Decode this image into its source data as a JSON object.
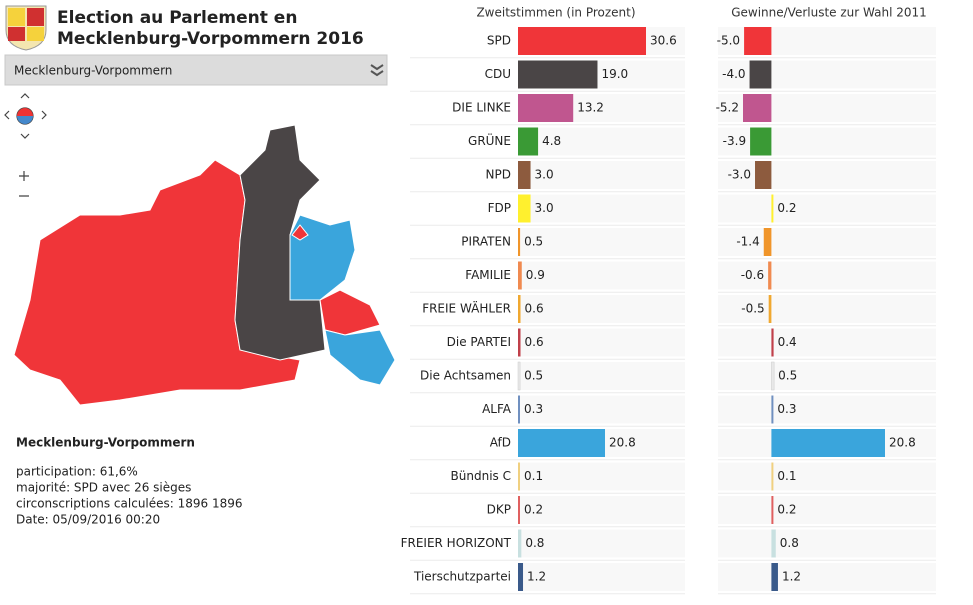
{
  "header": {
    "title_lines": [
      "Election au Parlement en",
      "Mecklenburg-Vorpommern 2016"
    ]
  },
  "selector": {
    "value": "Mecklenburg-Vorpommern"
  },
  "info": {
    "region": "Mecklenburg-Vorpommern",
    "lines": [
      "participation: 61,6%",
      "majorité: SPD avec 26 sièges",
      "circonscriptions calculées: 1896 1896",
      "Date: 05/09/2016 00:20"
    ]
  },
  "chart_data": [
    {
      "type": "bar",
      "orientation": "horizontal",
      "title": "Zweitstimmen (in Prozent)",
      "categories": [
        "SPD",
        "CDU",
        "DIE LINKE",
        "GRÜNE",
        "NPD",
        "FDP",
        "PIRATEN",
        "FAMILIE",
        "FREIE WÄHLER",
        "Die PARTEI",
        "Die Achtsamen",
        "ALFA",
        "AfD",
        "Bündnis C",
        "DKP",
        "FREIER HORIZONT",
        "Tierschutzpartei"
      ],
      "values": [
        30.6,
        19.0,
        13.2,
        4.8,
        3.0,
        3.0,
        0.5,
        0.9,
        0.6,
        0.6,
        0.5,
        0.3,
        20.8,
        0.1,
        0.2,
        0.8,
        1.2
      ],
      "value_labels": [
        "30.6",
        "19.0",
        "13.2",
        "4.8",
        "3.0",
        "3.0",
        "0.5",
        "0.9",
        "0.6",
        "0.6",
        "0.5",
        "0.3",
        "20.8",
        "0.1",
        "0.2",
        "0.8",
        "1.2"
      ],
      "colors": [
        "#f03539",
        "#4a4546",
        "#c0568f",
        "#3a9a35",
        "#8d5b3e",
        "#fff02e",
        "#f0952a",
        "#f08a50",
        "#f0a830",
        "#c0404a",
        "#e8e8e8",
        "#7090c0",
        "#3aa5dc",
        "#f0d080",
        "#e06060",
        "#c8e0e0",
        "#3a5a8a"
      ]
    },
    {
      "type": "bar",
      "orientation": "horizontal",
      "title": "Gewinne/Verluste zur Wahl 2011",
      "values": [
        -5.0,
        -4.0,
        -5.2,
        -3.9,
        -3.0,
        0.2,
        -1.4,
        -0.6,
        -0.5,
        0.4,
        0.5,
        0.3,
        20.8,
        0.1,
        0.2,
        0.8,
        1.2
      ],
      "value_labels": [
        "-5.0",
        "-4.0",
        "-5.2",
        "-3.9",
        "-3.0",
        "0.2",
        "-1.4",
        "-0.6",
        "-0.5",
        "0.4",
        "0.5",
        "0.3",
        "20.8",
        "0.1",
        "0.2",
        "0.8",
        "1.2"
      ],
      "colors": [
        "#f03539",
        "#4a4546",
        "#c0568f",
        "#3a9a35",
        "#8d5b3e",
        "#fff02e",
        "#f0952a",
        "#f08a50",
        "#f0a830",
        "#c0404a",
        "#e8e8e8",
        "#7090c0",
        "#3aa5dc",
        "#f0d080",
        "#e06060",
        "#c8e0e0",
        "#3a5a8a"
      ]
    }
  ]
}
